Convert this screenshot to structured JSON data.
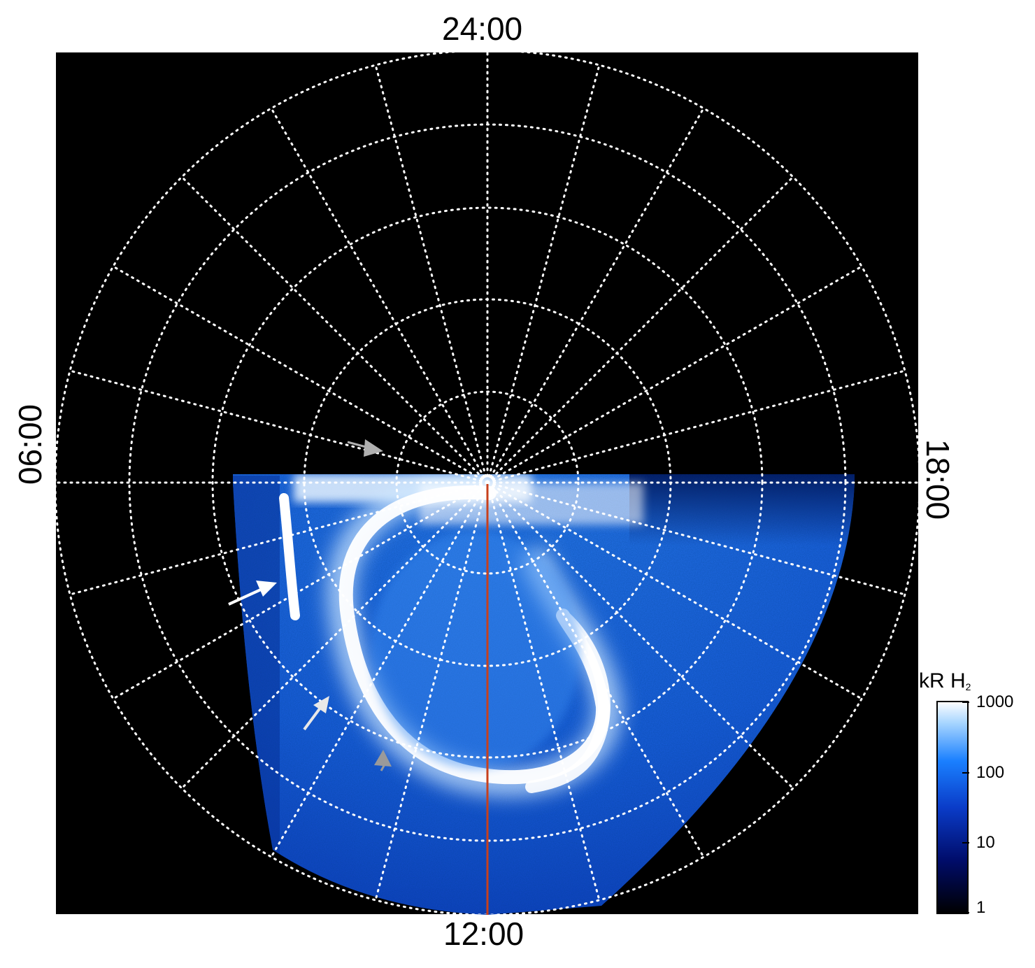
{
  "labels": {
    "top": "24:00",
    "bottom": "12:00",
    "left": "06:00",
    "right": "18:00"
  },
  "colorbar": {
    "title": "kR H",
    "title_sub": "2",
    "ticks": [
      "1000",
      "100",
      "10",
      "1"
    ],
    "scale": "log",
    "colors": [
      "#000000",
      "#000c6a",
      "#0a3cc8",
      "#1a80ff",
      "#a8d6ff",
      "#ffffff"
    ]
  },
  "image": {
    "background": "#000000",
    "grid_color": "#ffffff",
    "meridian_color": "#c8401c",
    "arrows": [
      {
        "name": "white-arrow-upper",
        "color": "#ffffff"
      },
      {
        "name": "white-arrow-lower",
        "color": "#e8e8e8"
      },
      {
        "name": "gray-arrow-top",
        "color": "#b0b0b0"
      },
      {
        "name": "gray-arrow-bottom",
        "color": "#9a9a9a"
      }
    ]
  }
}
